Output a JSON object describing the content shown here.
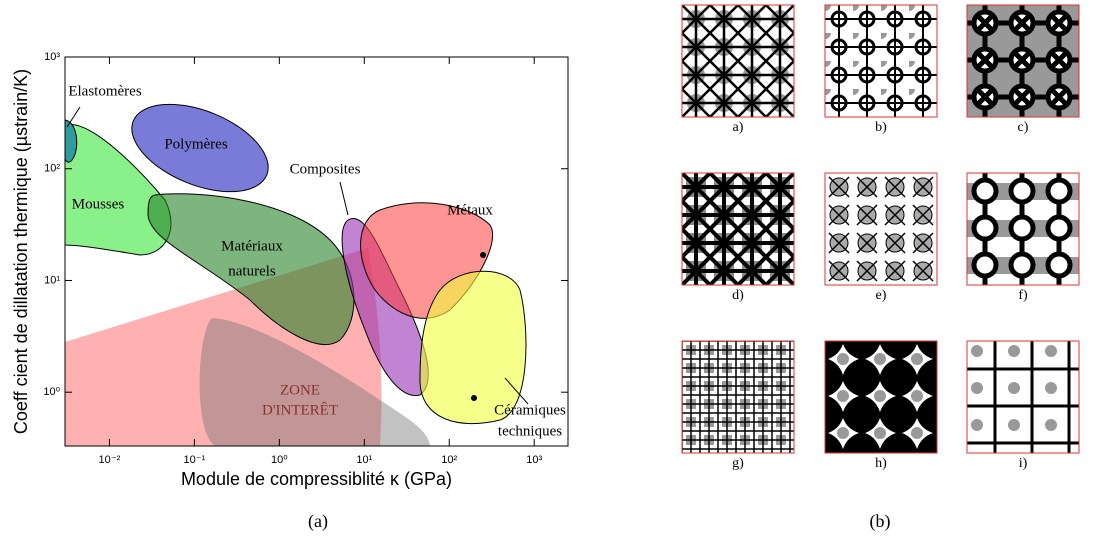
{
  "chart_data": {
    "type": "ashby",
    "xlabel": "Module de compressiblité κ (GPa)",
    "ylabel": "Coeff cient de dillatation thermique (µstrain/K)",
    "xlim": [
      0.003,
      2500
    ],
    "ylim": [
      0.33,
      1000
    ],
    "xlog": true,
    "ylog": true,
    "xticks": [
      {
        "value": 0.01,
        "label": "10⁻²"
      },
      {
        "value": 0.1,
        "label": "10⁻¹"
      },
      {
        "value": 1,
        "label": "10⁰"
      },
      {
        "value": 10,
        "label": "10¹"
      },
      {
        "value": 100,
        "label": "10²"
      },
      {
        "value": 1000,
        "label": "10³"
      }
    ],
    "yticks": [
      {
        "value": 1,
        "label": "10⁰"
      },
      {
        "value": 10,
        "label": "10¹"
      },
      {
        "value": 100,
        "label": "10²"
      },
      {
        "value": 1000,
        "label": "10³"
      }
    ],
    "annotations": [
      "Elastomères",
      "Polymères",
      "Mousses",
      "Matériaux",
      "naturels",
      "Composites",
      "Métaux",
      "ZONE",
      "D'INTERÊT",
      "Céramiques",
      "techniques"
    ],
    "panel_caption": "(a)"
  },
  "panel_b": {
    "caption": "(b)",
    "labels": [
      "a)",
      "b)",
      "c)",
      "d)",
      "e)",
      "f)",
      "g)",
      "h)",
      "i)"
    ]
  }
}
